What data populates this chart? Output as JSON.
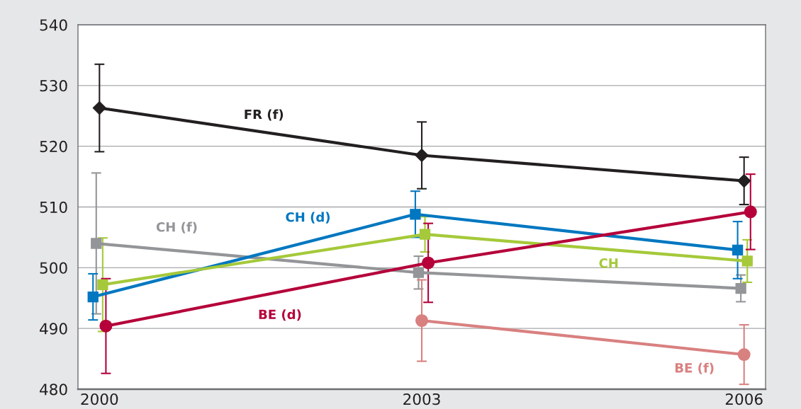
{
  "chart_data": {
    "type": "line",
    "xlim": [
      1999.8,
      2006.2
    ],
    "xticks": [
      2000,
      2003,
      2006
    ],
    "ylim": [
      480,
      540
    ],
    "yticks": [
      480,
      490,
      500,
      510,
      520,
      530,
      540
    ],
    "grid": "y",
    "legend": false,
    "line_style": "solid",
    "series": [
      {
        "name": "FR (f)",
        "color": "#231f20",
        "marker": "diamond",
        "x": [
          2000,
          2003,
          2006
        ],
        "values": [
          526.3,
          518.5,
          514.3
        ],
        "errors": [
          7.2,
          5.5,
          3.9
        ]
      },
      {
        "name": "CH (f)",
        "color": "#939598",
        "marker": "square",
        "x": [
          1999.97,
          2002.97,
          2005.97
        ],
        "values": [
          504.0,
          499.2,
          496.6
        ],
        "errors": [
          11.6,
          2.7,
          2.2
        ]
      },
      {
        "name": "CH (d)",
        "color": "#0077c0",
        "marker": "square",
        "x": [
          1999.94,
          2002.94,
          2005.94
        ],
        "values": [
          495.2,
          508.8,
          502.9
        ],
        "errors": [
          3.8,
          3.8,
          4.7
        ]
      },
      {
        "name": "CH",
        "color": "#a5c93a",
        "marker": "square",
        "x": [
          2000.03,
          2003.03,
          2006.03
        ],
        "values": [
          497.2,
          505.5,
          501.1
        ],
        "errors": [
          7.7,
          2.9,
          3.5
        ]
      },
      {
        "name": "BE (d)",
        "color": "#b5003a",
        "marker": "circle",
        "x": [
          2000.06,
          2003.06,
          2006.06
        ],
        "values": [
          490.4,
          500.8,
          509.2
        ],
        "errors": [
          7.8,
          6.5,
          6.2
        ]
      },
      {
        "name": "BE (f)",
        "color": "#d98080",
        "marker": "circle",
        "x": [
          2003,
          2006
        ],
        "values": [
          491.3,
          485.7
        ],
        "errors": [
          6.7,
          4.9
        ]
      }
    ]
  }
}
